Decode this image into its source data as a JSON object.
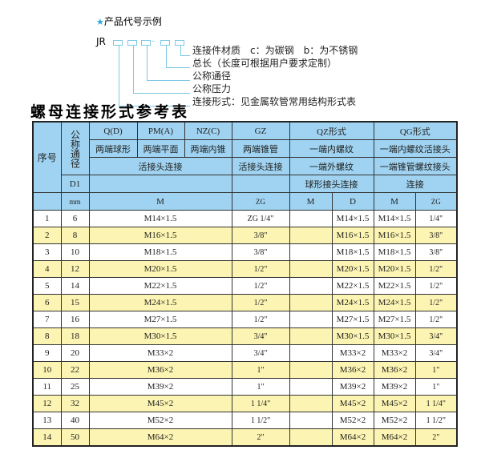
{
  "code_example": {
    "heading": "产品代号示例",
    "star_icon": "star-icon",
    "prefix": "JR",
    "separator": "-",
    "labels": [
      "连接件材质　c：为碳钢　b：为不锈钢",
      "总长（长度可根据用户要求定制）",
      "公称通径",
      "公称压力",
      "连接形式：见金属软管常用结构形式表"
    ]
  },
  "table_title": "螺母连接形式参考表",
  "colors": {
    "header_bg": "#9fd3f1",
    "stripe_bg": "#fcf4b2"
  },
  "header": {
    "seq": "序号",
    "dn": "公称通径",
    "d1": "D1",
    "mm": "mm",
    "qd": "Q(D)",
    "pm": "PM(A)",
    "nz": "NZ(C)",
    "gz": "GZ",
    "qz": "QZ形式",
    "qg": "QG形式",
    "qd2": "两端球形",
    "pm2": "两端平面",
    "nz2": "两端内锥",
    "gz2": "两端锥管",
    "qz2": "一端内螺纹",
    "qg2": "一端内螺纹活接头",
    "hj": "活接头连接",
    "gz3": "活接头连接",
    "qz3": "一端外螺纹",
    "qg3": "一端锥管螺纹接头",
    "qz4": "球形接头连接",
    "qg4": "连接",
    "m": "M",
    "zg": "ZG",
    "qzm": "M",
    "qzd": "D",
    "qgm": "M",
    "qgzg": "ZG"
  },
  "rows": [
    {
      "n": "1",
      "dn": "6",
      "m": "M14×1.5",
      "zg": "ZG 1/4\"",
      "qzm": "",
      "qzd": "M14×1.5",
      "qgm": "M14×1.5",
      "qgzg": "1/4\""
    },
    {
      "n": "2",
      "dn": "8",
      "m": "M16×1.5",
      "zg": "3/8\"",
      "qzm": "",
      "qzd": "M16×1.5",
      "qgm": "M16×1.5",
      "qgzg": "3/8\""
    },
    {
      "n": "3",
      "dn": "10",
      "m": "M18×1.5",
      "zg": "3/8\"",
      "qzm": "",
      "qzd": "M18×1.5",
      "qgm": "M18×1.5",
      "qgzg": "3/8\""
    },
    {
      "n": "4",
      "dn": "12",
      "m": "M20×1.5",
      "zg": "1/2\"",
      "qzm": "",
      "qzd": "M20×1.5",
      "qgm": "M20×1.5",
      "qgzg": "1/2\""
    },
    {
      "n": "5",
      "dn": "14",
      "m": "M22×1.5",
      "zg": "1/2\"",
      "qzm": "",
      "qzd": "M22×1.5",
      "qgm": "M22×1.5",
      "qgzg": "1/2\""
    },
    {
      "n": "6",
      "dn": "15",
      "m": "M24×1.5",
      "zg": "1/2\"",
      "qzm": "",
      "qzd": "M24×1.5",
      "qgm": "M24×1.5",
      "qgzg": "1/2\""
    },
    {
      "n": "7",
      "dn": "16",
      "m": "M27×1.5",
      "zg": "1/2\"",
      "qzm": "",
      "qzd": "M27×1.5",
      "qgm": "M27×1.5",
      "qgzg": "1/2\""
    },
    {
      "n": "8",
      "dn": "18",
      "m": "M30×1.5",
      "zg": "3/4\"",
      "qzm": "",
      "qzd": "M30×1.5",
      "qgm": "M30×1.5",
      "qgzg": "3/4\""
    },
    {
      "n": "9",
      "dn": "20",
      "m": "M33×2",
      "zg": "3/4\"",
      "qzm": "",
      "qzd": "M33×2",
      "qgm": "M33×2",
      "qgzg": "3/4\""
    },
    {
      "n": "10",
      "dn": "22",
      "m": "M36×2",
      "zg": "1\"",
      "qzm": "",
      "qzd": "M36×2",
      "qgm": "M36×2",
      "qgzg": "1\""
    },
    {
      "n": "11",
      "dn": "25",
      "m": "M39×2",
      "zg": "1\"",
      "qzm": "",
      "qzd": "M39×2",
      "qgm": "M39×2",
      "qgzg": "1\""
    },
    {
      "n": "12",
      "dn": "32",
      "m": "M45×2",
      "zg": "1 1/4\"",
      "qzm": "",
      "qzd": "M45×2",
      "qgm": "M45×2",
      "qgzg": "1 1/4\""
    },
    {
      "n": "13",
      "dn": "40",
      "m": "M52×2",
      "zg": "1 1/2\"",
      "qzm": "",
      "qzd": "M52×2",
      "qgm": "M52×2",
      "qgzg": "1 1/2\""
    },
    {
      "n": "14",
      "dn": "50",
      "m": "M64×2",
      "zg": "2\"",
      "qzm": "",
      "qzd": "M64×2",
      "qgm": "M64×2",
      "qgzg": "2\""
    }
  ]
}
